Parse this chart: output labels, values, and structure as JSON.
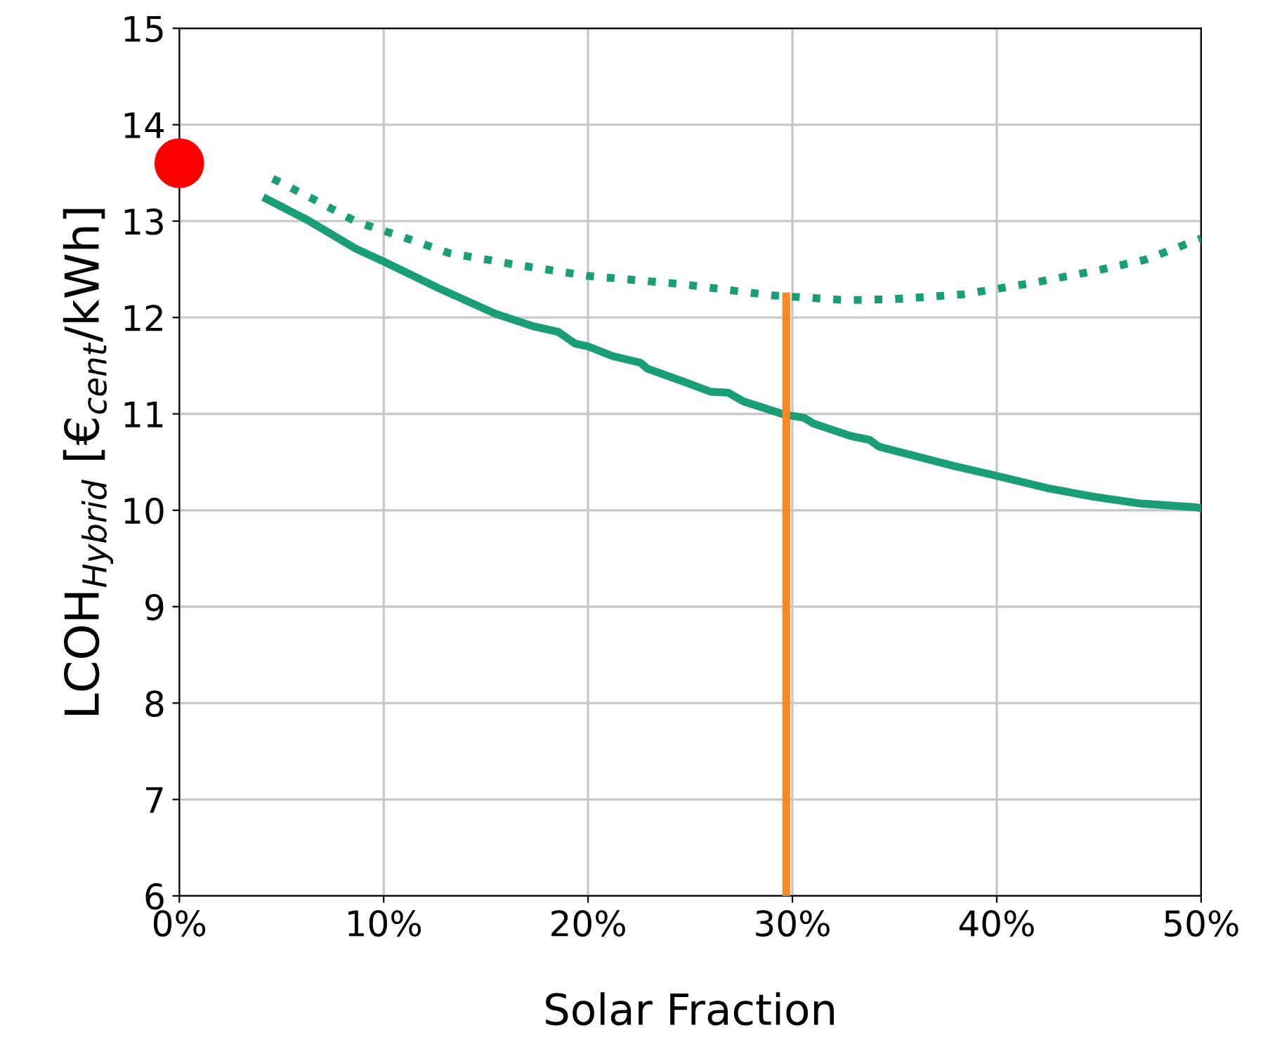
{
  "chart_data": {
    "type": "line",
    "xlabel": "Solar Fraction",
    "ylabel": "LCOH$_{Hybrid}$ [€$_{cent}$/kWh]",
    "xlim": [
      0,
      50
    ],
    "ylim": [
      6,
      15
    ],
    "xticks": [
      {
        "value": 0,
        "label": "0%"
      },
      {
        "value": 10,
        "label": "10%"
      },
      {
        "value": 20,
        "label": "20%"
      },
      {
        "value": 30,
        "label": "30%"
      },
      {
        "value": 40,
        "label": "40%"
      },
      {
        "value": 50,
        "label": "50%"
      }
    ],
    "yticks": [
      6,
      7,
      8,
      9,
      10,
      11,
      12,
      13,
      14,
      15
    ],
    "grid": true,
    "series": [
      {
        "color": "#1a9e77",
        "line_style": "solid",
        "x": [
          4.27,
          6.28,
          8.58,
          10,
          12.73,
          15.46,
          17.3,
          18.55,
          19.36,
          20,
          21.2,
          22.57,
          22.9,
          24.6,
          26.0,
          26.86,
          27.6,
          29.66,
          30.57,
          31.03,
          32.86,
          33.78,
          34.23,
          37.9,
          39.95,
          42.47,
          44.76,
          47.05,
          49.8,
          50
        ],
        "values": [
          13.23,
          13.01,
          12.72,
          12.58,
          12.3,
          12.04,
          11.91,
          11.85,
          11.73,
          11.7,
          11.6,
          11.53,
          11.47,
          11.34,
          11.23,
          11.22,
          11.13,
          10.99,
          10.96,
          10.9,
          10.77,
          10.73,
          10.66,
          10.46,
          10.36,
          10.23,
          10.14,
          10.07,
          10.03,
          10.02
        ]
      },
      {
        "color": "#1a9e77",
        "line_style": "dotted",
        "x": [
          4.57,
          6.63,
          8.69,
          10.86,
          13.17,
          16.38,
          20.05,
          24.4,
          28.97,
          32.63,
          34.92,
          38.35,
          41.78,
          44.96,
          47.27,
          50
        ],
        "values": [
          13.44,
          13.22,
          12.99,
          12.84,
          12.67,
          12.55,
          12.43,
          12.35,
          12.23,
          12.18,
          12.19,
          12.24,
          12.36,
          12.49,
          12.6,
          12.82
        ]
      },
      {
        "color": "#f5892a",
        "line_style": "solid",
        "x": [
          29.7,
          29.7
        ],
        "values": [
          6,
          12.22
        ]
      },
      {
        "type": "scatter",
        "color": "#ff0000",
        "marker": "circle",
        "x": [
          0
        ],
        "values": [
          13.6
        ]
      }
    ]
  }
}
